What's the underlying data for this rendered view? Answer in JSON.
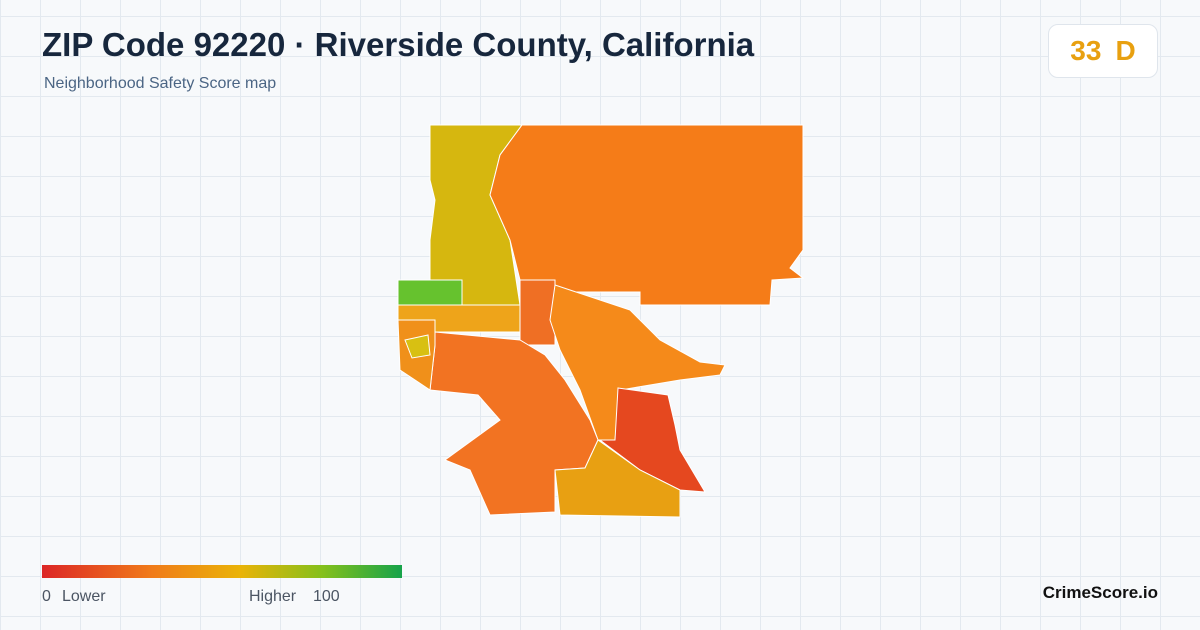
{
  "header": {
    "title": "ZIP Code 92220 · Riverside County, California",
    "subtitle": "Neighborhood Safety Score map",
    "score": 33,
    "grade": "D"
  },
  "legend": {
    "min": 0,
    "low_label": "Lower",
    "high_label": "Higher",
    "max": 100
  },
  "footer": {
    "brand": "CrimeScore.io"
  }
}
